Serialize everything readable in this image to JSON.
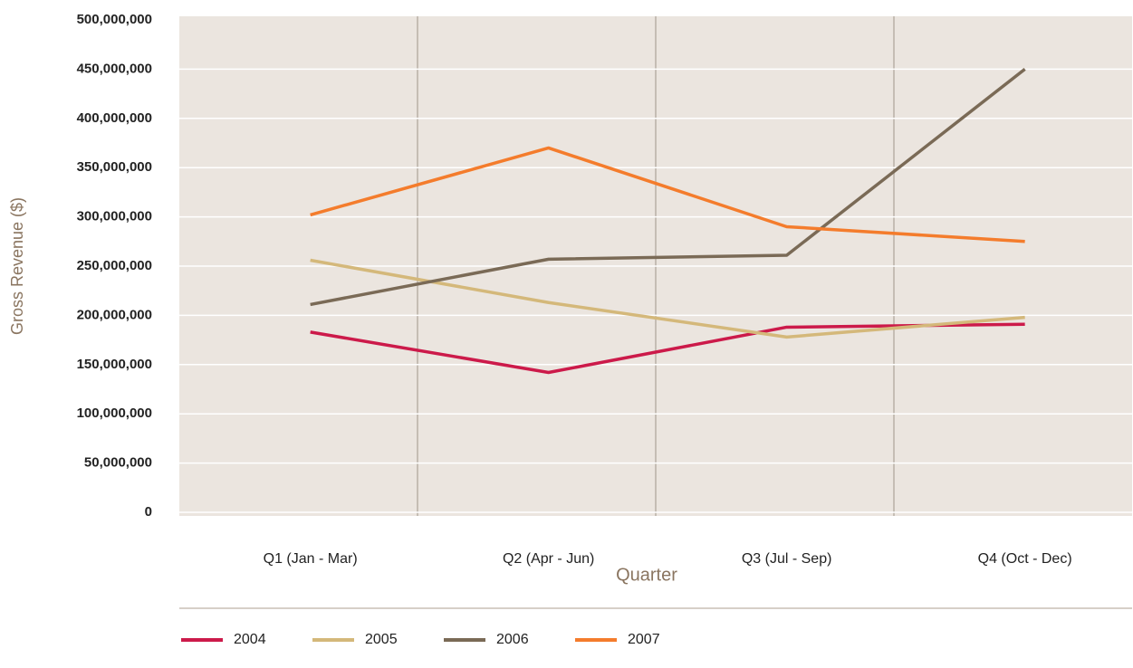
{
  "chart_data": {
    "type": "line",
    "x_label": "Quarter",
    "y_label": "Gross Revenue ($)",
    "categories": [
      "Q1 (Jan - Mar)",
      "Q2 (Apr - Jun)",
      "Q3 (Jul - Sep)",
      "Q4 (Oct - Dec)"
    ],
    "series": [
      {
        "name": "2004",
        "color": "#cc1a4a",
        "values": [
          183000000,
          142000000,
          188000000,
          191000000
        ]
      },
      {
        "name": "2005",
        "color": "#d4b87a",
        "values": [
          256000000,
          213000000,
          178000000,
          198000000
        ]
      },
      {
        "name": "2006",
        "color": "#7a6a56",
        "values": [
          211000000,
          257000000,
          261000000,
          450000000
        ]
      },
      {
        "name": "2007",
        "color": "#f47c2c",
        "values": [
          302000000,
          370000000,
          290000000,
          275000000
        ]
      }
    ],
    "ylim": [
      0,
      500000000
    ],
    "yticks": [
      0,
      {
        "value": 50000000,
        "label": "50,000,000"
      },
      {
        "value": 100000000,
        "label": "100,000,000"
      },
      {
        "value": 150000000,
        "label": "150,000,000"
      },
      {
        "value": 200000000,
        "label": "200,000,000"
      },
      {
        "value": 250000000,
        "label": "250,000,000"
      },
      {
        "value": 300000000,
        "label": "300,000,000"
      },
      {
        "value": 350000000,
        "label": "350,000,000"
      },
      {
        "value": 400000000,
        "label": "400,000,000"
      },
      {
        "value": 450000000,
        "label": "450,000,000"
      },
      {
        "value": 500000000,
        "label": "500,000,000"
      }
    ],
    "grid": true,
    "legend": "bottom-left"
  }
}
